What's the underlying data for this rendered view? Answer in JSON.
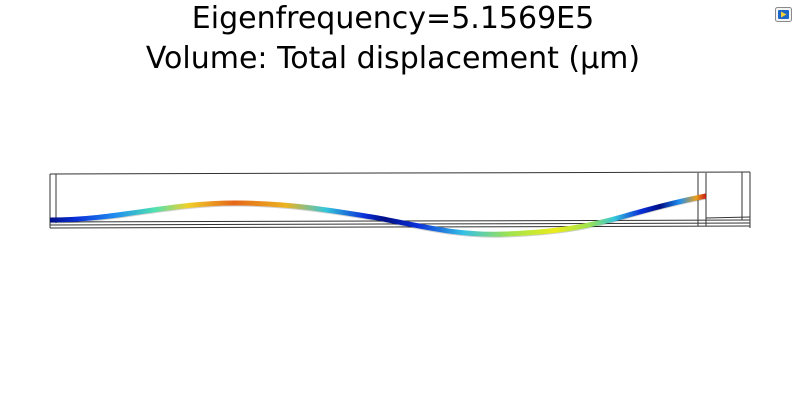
{
  "plot": {
    "title_line1": "Eigenfrequency=5.1569E5",
    "title_line2": "Volume: Total displacement (µm)"
  },
  "colormap": {
    "name": "rainbow",
    "stops": [
      "#00007a",
      "#0a2fd9",
      "#1f8fef",
      "#35d6c8",
      "#9fe34f",
      "#ecec1a",
      "#f6a41c",
      "#e8531b",
      "#b0111b"
    ]
  },
  "colors": {
    "frame": "#333333",
    "icon_blue": "#1e67c8",
    "icon_yellow": "#f3d23a"
  },
  "icons": {
    "corner_button": "view-toggle-icon"
  }
}
